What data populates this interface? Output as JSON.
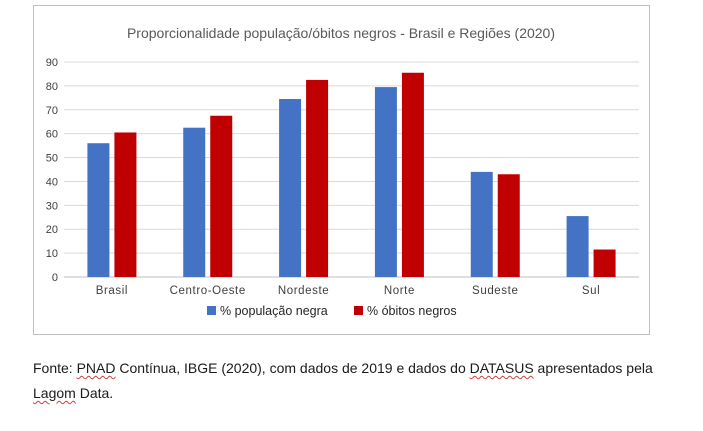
{
  "chart_data": {
    "type": "bar",
    "title": "Proporcionalidade população/óbitos negros - Brasil e Regiões (2020)",
    "xlabel": "",
    "ylabel": "",
    "categories": [
      "Brasil",
      "Centro-Oeste",
      "Nordeste",
      "Norte",
      "Sudeste",
      "Sul"
    ],
    "series": [
      {
        "name": "% população negra",
        "values": [
          56,
          62.5,
          74.5,
          79.5,
          44,
          25.5
        ],
        "color": "#4472c4"
      },
      {
        "name": "% óbitos negros",
        "values": [
          60.5,
          67.5,
          82.5,
          85.5,
          43,
          11.5
        ],
        "color": "#c00000"
      }
    ],
    "ylim": [
      0,
      90
    ],
    "yticks": [
      0,
      10,
      20,
      30,
      40,
      50,
      60,
      70,
      80,
      90
    ],
    "grid": true,
    "legend_position": "bottom"
  },
  "source": {
    "parts": [
      {
        "text": "Fonte: ",
        "style": "plain"
      },
      {
        "text": "PNAD",
        "style": "squiggle"
      },
      {
        "text": " Contínua, IBGE (2020), com dados de 2019 e dados do ",
        "style": "plain"
      },
      {
        "text": "DATASUS",
        "style": "squiggle"
      },
      {
        "text": " apresentados pela ",
        "style": "plain"
      },
      {
        "text": "Lagom",
        "style": "squiggle"
      },
      {
        "text": " Data.",
        "style": "plain"
      }
    ]
  }
}
